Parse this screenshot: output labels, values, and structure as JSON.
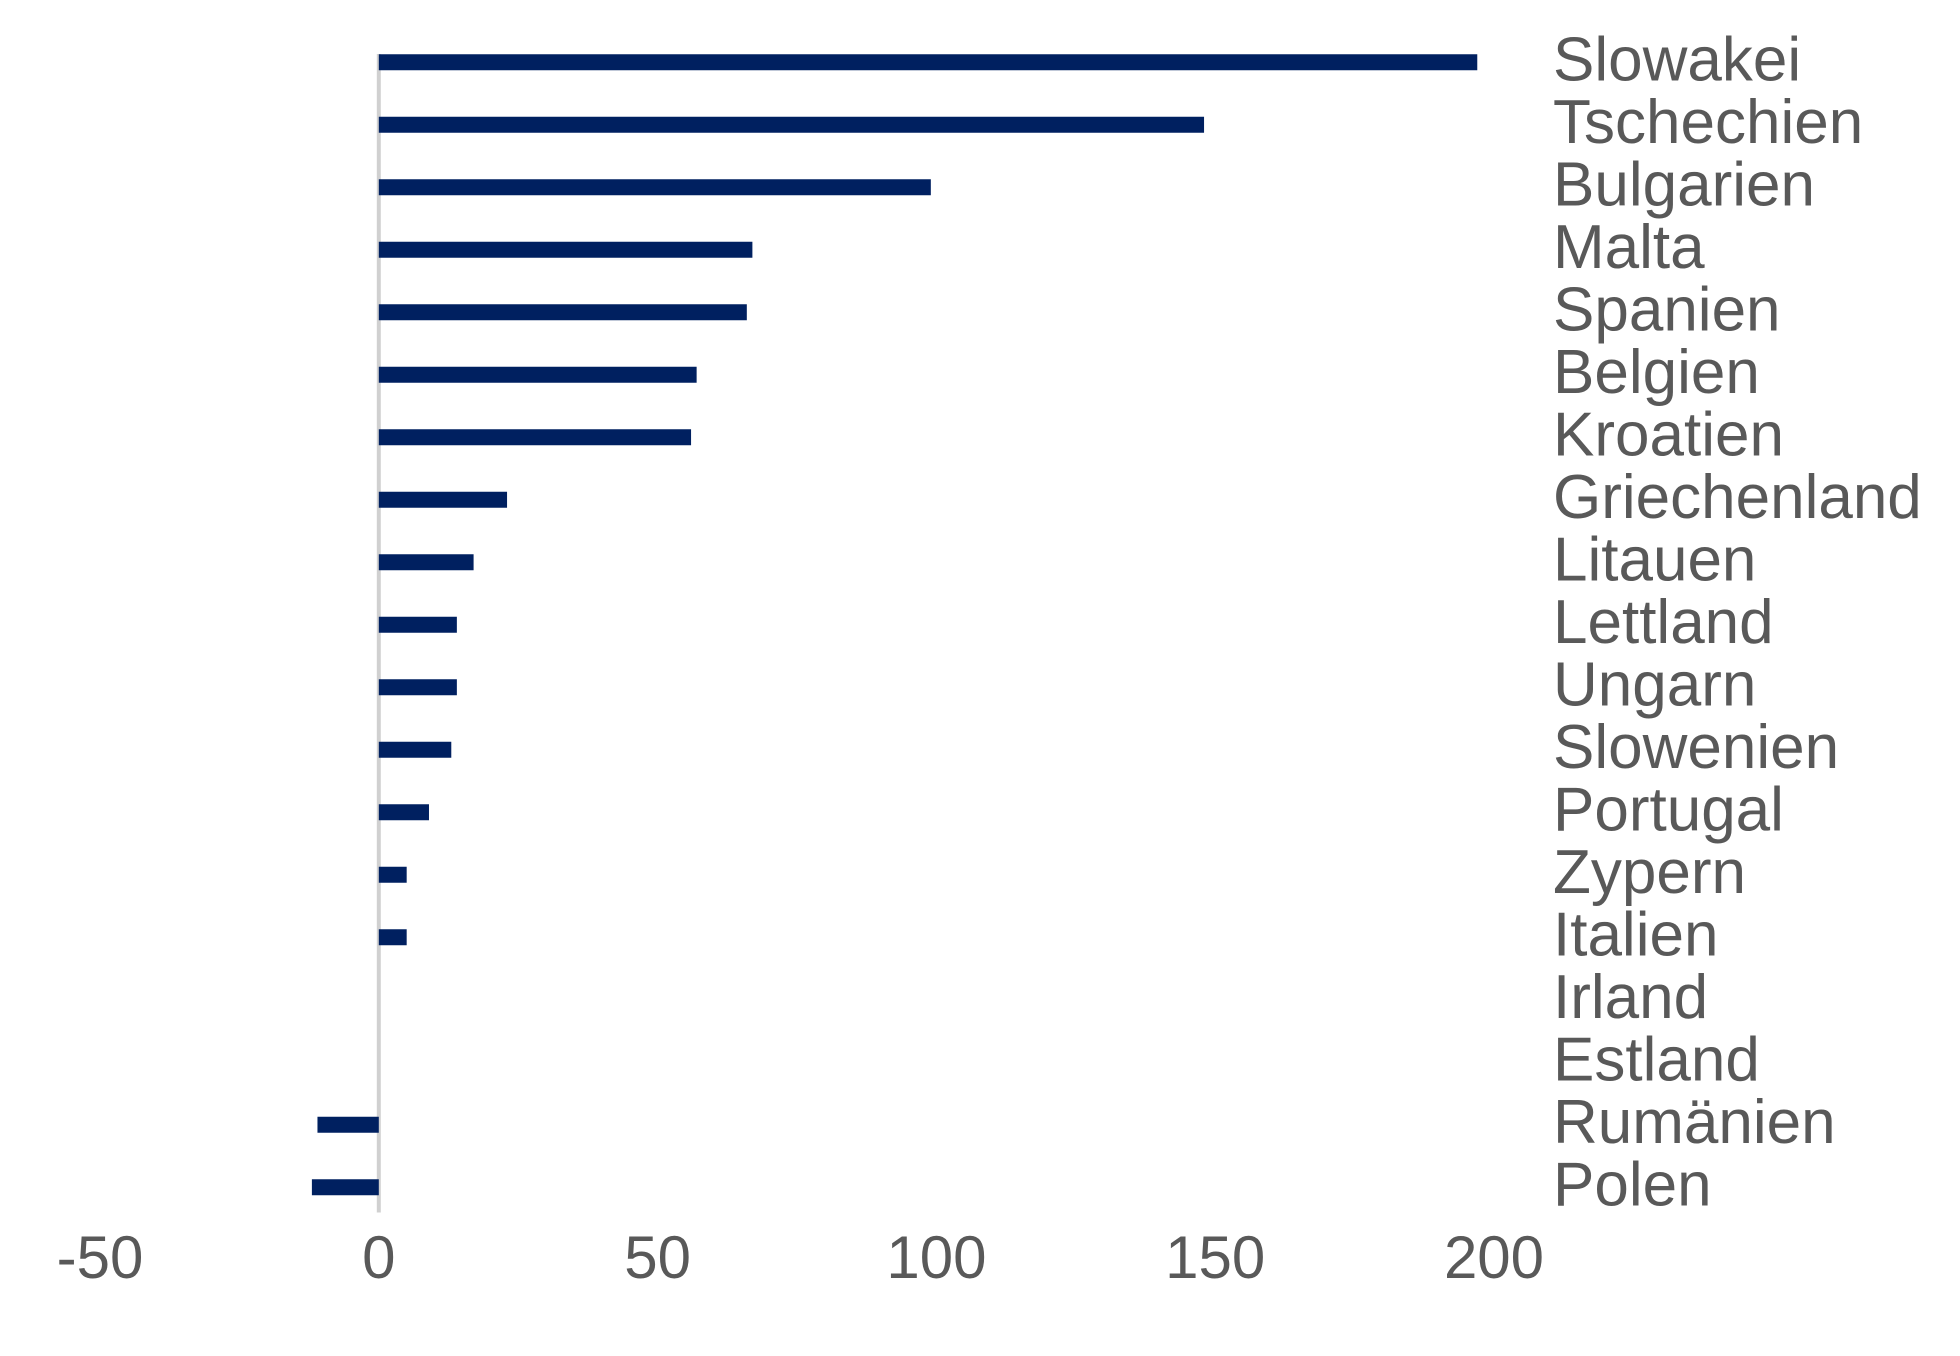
{
  "chart_data": {
    "type": "hbar",
    "categories": [
      "Slowakei",
      "Tschechien",
      "Bulgarien",
      "Malta",
      "Spanien",
      "Belgien",
      "Kroatien",
      "Griechenland",
      "Litauen",
      "Lettland",
      "Ungarn",
      "Slowenien",
      "Portugal",
      "Zypern",
      "Italien",
      "Irland",
      "Estland",
      "Rumänien",
      "Polen"
    ],
    "values": [
      197,
      148,
      99,
      67,
      66,
      57,
      56,
      23,
      17,
      14,
      14,
      13,
      9,
      5,
      5,
      0,
      0,
      -11,
      -12
    ],
    "color": "#002060",
    "xlim": [
      -50,
      200
    ],
    "xticks": [
      -50,
      0,
      50,
      100,
      150,
      200
    ]
  }
}
